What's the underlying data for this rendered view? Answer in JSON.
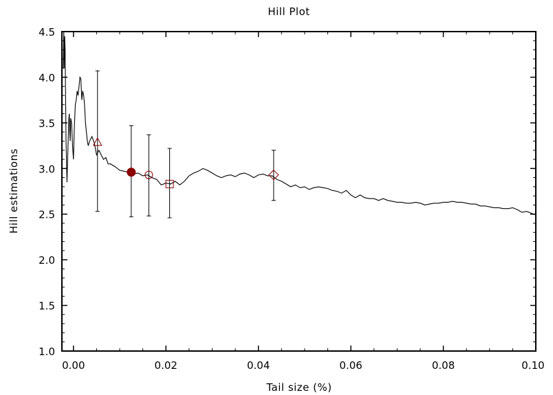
{
  "chart_data": {
    "type": "line",
    "title": "Hill Plot",
    "xlabel": "Tail size (%)",
    "ylabel": "Hill estimations",
    "xlim": [
      -0.0025,
      0.1
    ],
    "ylim": [
      1.0,
      4.5
    ],
    "grid": false,
    "x_ticks": [
      0.0,
      0.02,
      0.04,
      0.06,
      0.08,
      0.1
    ],
    "x_tick_labels": [
      "0.00",
      "0.02",
      "0.04",
      "0.06",
      "0.08",
      "0.10"
    ],
    "y_ticks": [
      1.0,
      1.5,
      2.0,
      2.5,
      3.0,
      3.5,
      4.0,
      4.5
    ],
    "y_tick_labels": [
      "1.0",
      "1.5",
      "2.0",
      "2.5",
      "3.0",
      "3.5",
      "4.0",
      "4.5"
    ],
    "series": [
      {
        "x": [
          -0.0022,
          -0.0021,
          -0.002,
          -0.0019,
          -0.0018,
          -0.0016,
          -0.0014,
          -0.0012,
          -0.001,
          -0.0009,
          -0.0008,
          -0.0007,
          -0.0006,
          -0.0004,
          -0.0002,
          0.0,
          0.0002,
          0.0004,
          0.0006,
          0.0008,
          0.001,
          0.0012,
          0.0014,
          0.0016,
          0.0018,
          0.002,
          0.0022,
          0.0024,
          0.0026,
          0.0028,
          0.003,
          0.0032,
          0.0035,
          0.004,
          0.0045,
          0.005,
          0.0055,
          0.006,
          0.0065,
          0.007,
          0.0075,
          0.008,
          0.009,
          0.01,
          0.011,
          0.012,
          0.013,
          0.014,
          0.015,
          0.016,
          0.017,
          0.018,
          0.019,
          0.02,
          0.021,
          0.022,
          0.023,
          0.024,
          0.025,
          0.026,
          0.027,
          0.028,
          0.029,
          0.03,
          0.031,
          0.032,
          0.033,
          0.034,
          0.035,
          0.036,
          0.037,
          0.038,
          0.039,
          0.04,
          0.041,
          0.042,
          0.043,
          0.044,
          0.045,
          0.046,
          0.047,
          0.048,
          0.049,
          0.05,
          0.051,
          0.052,
          0.053,
          0.054,
          0.055,
          0.056,
          0.057,
          0.058,
          0.059,
          0.06,
          0.061,
          0.062,
          0.063,
          0.064,
          0.065,
          0.066,
          0.067,
          0.068,
          0.069,
          0.07,
          0.071,
          0.072,
          0.073,
          0.074,
          0.075,
          0.076,
          0.077,
          0.078,
          0.079,
          0.08,
          0.081,
          0.082,
          0.083,
          0.084,
          0.085,
          0.086,
          0.087,
          0.088,
          0.089,
          0.09,
          0.091,
          0.092,
          0.093,
          0.094,
          0.095,
          0.096,
          0.097,
          0.098,
          0.099,
          0.1
        ],
        "y": [
          4.1,
          4.5,
          4.1,
          4.45,
          4.3,
          3.3,
          2.85,
          3.2,
          3.55,
          3.6,
          3.4,
          3.3,
          3.55,
          3.5,
          3.25,
          3.1,
          3.45,
          3.7,
          3.75,
          3.85,
          3.8,
          3.9,
          4.0,
          3.98,
          3.75,
          3.85,
          3.8,
          3.7,
          3.5,
          3.4,
          3.3,
          3.25,
          3.3,
          3.35,
          3.28,
          3.15,
          3.2,
          3.15,
          3.1,
          3.12,
          3.05,
          3.05,
          3.02,
          2.98,
          2.97,
          2.96,
          2.94,
          2.95,
          2.92,
          2.93,
          2.9,
          2.88,
          2.82,
          2.84,
          2.83,
          2.86,
          2.82,
          2.86,
          2.92,
          2.95,
          2.97,
          3.0,
          2.98,
          2.95,
          2.92,
          2.9,
          2.92,
          2.93,
          2.91,
          2.94,
          2.95,
          2.93,
          2.9,
          2.93,
          2.94,
          2.92,
          2.92,
          2.88,
          2.86,
          2.83,
          2.8,
          2.82,
          2.79,
          2.8,
          2.77,
          2.79,
          2.8,
          2.79,
          2.78,
          2.76,
          2.75,
          2.73,
          2.76,
          2.71,
          2.68,
          2.71,
          2.68,
          2.67,
          2.67,
          2.65,
          2.67,
          2.65,
          2.64,
          2.63,
          2.63,
          2.62,
          2.62,
          2.63,
          2.62,
          2.6,
          2.61,
          2.62,
          2.62,
          2.63,
          2.63,
          2.64,
          2.63,
          2.63,
          2.62,
          2.61,
          2.61,
          2.59,
          2.59,
          2.58,
          2.57,
          2.57,
          2.56,
          2.56,
          2.57,
          2.55,
          2.52,
          2.53,
          2.51,
          2.49
        ]
      }
    ],
    "markers": [
      {
        "shape": "triangle",
        "x": 0.0052,
        "y": 3.29,
        "err_low": 2.53,
        "err_high": 4.07,
        "filled": false
      },
      {
        "shape": "circle",
        "x": 0.0125,
        "y": 2.96,
        "err_low": 2.47,
        "err_high": 3.47,
        "filled": true
      },
      {
        "shape": "circle",
        "x": 0.0163,
        "y": 2.93,
        "err_low": 2.48,
        "err_high": 3.37,
        "filled": false
      },
      {
        "shape": "square",
        "x": 0.0208,
        "y": 2.83,
        "err_low": 2.46,
        "err_high": 3.22,
        "filled": false
      },
      {
        "shape": "diamond",
        "x": 0.0433,
        "y": 2.93,
        "err_low": 2.65,
        "err_high": 3.2,
        "filled": false
      }
    ],
    "colors": {
      "line": "#000000",
      "marker": "#8b0000",
      "errorbar": "#000000"
    }
  }
}
